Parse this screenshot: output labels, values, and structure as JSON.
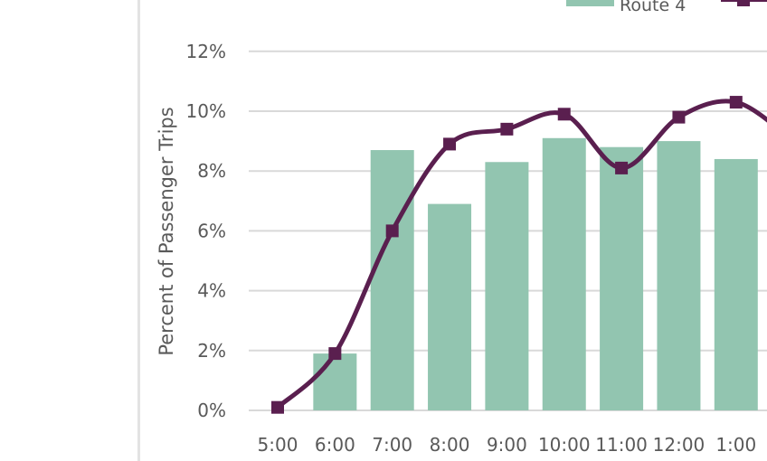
{
  "chart_data": {
    "type": "bar",
    "categories": [
      "5:00",
      "6:00",
      "7:00",
      "8:00",
      "9:00",
      "10:00",
      "11:00",
      "12:00",
      "1:00"
    ],
    "ylabel": "Percent of Passenger Trips",
    "ylim": [
      0,
      12
    ],
    "yticks": [
      "0%",
      "2%",
      "4%",
      "6%",
      "8%",
      "10%",
      "12%"
    ],
    "grid": true,
    "legend_position": "top-right",
    "series": [
      {
        "name": "Route 4",
        "type": "bar",
        "color": "#92c5b0",
        "values": [
          0,
          1.9,
          8.7,
          6.9,
          8.3,
          9.1,
          8.8,
          9.0,
          8.4
        ]
      },
      {
        "name": "",
        "type": "line",
        "marker": "square",
        "color": "#5a1f4f",
        "values": [
          0.1,
          1.9,
          6.0,
          8.9,
          9.4,
          9.9,
          8.1,
          9.8,
          10.3
        ]
      }
    ]
  }
}
